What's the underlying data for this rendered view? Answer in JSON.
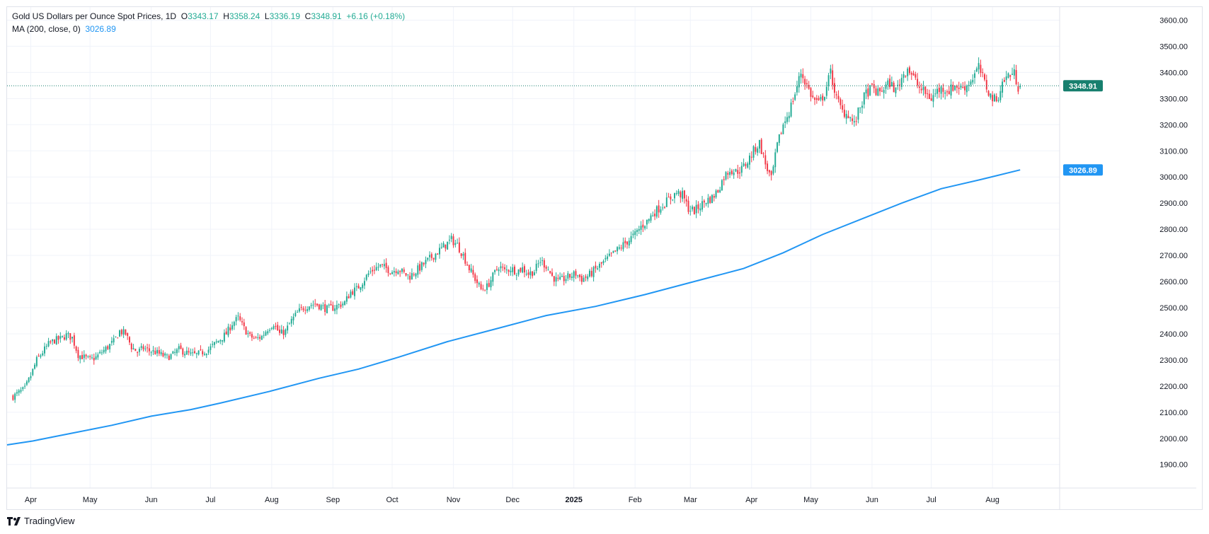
{
  "legend": {
    "title": "Gold US Dollars per Ounce Spot Prices, 1D",
    "open_label": "O",
    "open": "3343.17",
    "high_label": "H",
    "high": "3358.24",
    "low_label": "L",
    "low": "3336.19",
    "close_label": "C",
    "close": "3348.91",
    "change": "+6.16 (+0.18%)",
    "ma_label": "MA (200, close, 0)",
    "ma_value": "3026.89"
  },
  "branding": {
    "name": "TradingView"
  },
  "colors": {
    "up": "#22ab94",
    "down": "#f23645",
    "ma": "#2196f3",
    "last_price": "#177f6e",
    "grid": "#f0f3fa"
  },
  "chart_data": {
    "type": "candlestick",
    "title": "Gold US Dollars per Ounce Spot Prices, 1D",
    "ylim": [
      1810,
      3650
    ],
    "y_ticks": [
      1900,
      2000,
      2100,
      2200,
      2300,
      2400,
      2500,
      2600,
      2700,
      2800,
      2900,
      3000,
      3100,
      3200,
      3300,
      3400,
      3500,
      3600
    ],
    "y_tick_labels": [
      "1900.00",
      "2000.00",
      "2100.00",
      "2200.00",
      "2300.00",
      "2400.00",
      "2500.00",
      "2600.00",
      "2700.00",
      "2800.00",
      "2900.00",
      "3000.00",
      "3100.00",
      "3200.00",
      "3300.00",
      "3400.00",
      "3500.00",
      "3600.00"
    ],
    "x_labels": [
      {
        "label": "Apr",
        "day": 9
      },
      {
        "label": "May",
        "day": 39
      },
      {
        "label": "Jun",
        "day": 70
      },
      {
        "label": "Jul",
        "day": 100
      },
      {
        "label": "Aug",
        "day": 131
      },
      {
        "label": "Sep",
        "day": 162
      },
      {
        "label": "Oct",
        "day": 192
      },
      {
        "label": "Nov",
        "day": 223
      },
      {
        "label": "Dec",
        "day": 253
      },
      {
        "label": "2025",
        "day": 284,
        "bold": true
      },
      {
        "label": "Feb",
        "day": 315
      },
      {
        "label": "Mar",
        "day": 343
      },
      {
        "label": "Apr",
        "day": 374
      },
      {
        "label": "May",
        "day": 404
      },
      {
        "label": "Jun",
        "day": 435
      },
      {
        "label": "Jul",
        "day": 465
      },
      {
        "label": "Aug",
        "day": 496
      }
    ],
    "day_range": [
      -3,
      530
    ],
    "close_series": [
      [
        0,
        2160
      ],
      [
        3,
        2175
      ],
      [
        6,
        2190
      ],
      [
        9,
        2240
      ],
      [
        12,
        2300
      ],
      [
        15,
        2330
      ],
      [
        18,
        2360
      ],
      [
        21,
        2375
      ],
      [
        24,
        2380
      ],
      [
        27,
        2395
      ],
      [
        30,
        2385
      ],
      [
        33,
        2320
      ],
      [
        36,
        2310
      ],
      [
        39,
        2300
      ],
      [
        42,
        2310
      ],
      [
        45,
        2330
      ],
      [
        48,
        2350
      ],
      [
        51,
        2370
      ],
      [
        54,
        2410
      ],
      [
        57,
        2400
      ],
      [
        60,
        2350
      ],
      [
        63,
        2330
      ],
      [
        66,
        2345
      ],
      [
        69,
        2335
      ],
      [
        72,
        2330
      ],
      [
        75,
        2320
      ],
      [
        78,
        2310
      ],
      [
        81,
        2320
      ],
      [
        84,
        2340
      ],
      [
        87,
        2330
      ],
      [
        90,
        2320
      ],
      [
        93,
        2320
      ],
      [
        96,
        2330
      ],
      [
        99,
        2340
      ],
      [
        102,
        2360
      ],
      [
        105,
        2380
      ],
      [
        108,
        2400
      ],
      [
        111,
        2440
      ],
      [
        114,
        2460
      ],
      [
        117,
        2420
      ],
      [
        120,
        2390
      ],
      [
        123,
        2380
      ],
      [
        126,
        2390
      ],
      [
        129,
        2420
      ],
      [
        132,
        2440
      ],
      [
        135,
        2400
      ],
      [
        138,
        2410
      ],
      [
        141,
        2450
      ],
      [
        144,
        2480
      ],
      [
        147,
        2500
      ],
      [
        150,
        2510
      ],
      [
        153,
        2515
      ],
      [
        156,
        2505
      ],
      [
        159,
        2495
      ],
      [
        162,
        2500
      ],
      [
        165,
        2510
      ],
      [
        168,
        2520
      ],
      [
        171,
        2560
      ],
      [
        174,
        2570
      ],
      [
        177,
        2600
      ],
      [
        180,
        2630
      ],
      [
        183,
        2650
      ],
      [
        186,
        2660
      ],
      [
        189,
        2650
      ],
      [
        192,
        2640
      ],
      [
        195,
        2650
      ],
      [
        198,
        2630
      ],
      [
        201,
        2620
      ],
      [
        204,
        2640
      ],
      [
        207,
        2660
      ],
      [
        210,
        2680
      ],
      [
        213,
        2700
      ],
      [
        216,
        2720
      ],
      [
        219,
        2740
      ],
      [
        222,
        2760
      ],
      [
        225,
        2740
      ],
      [
        228,
        2700
      ],
      [
        231,
        2650
      ],
      [
        234,
        2610
      ],
      [
        237,
        2570
      ],
      [
        240,
        2580
      ],
      [
        243,
        2620
      ],
      [
        246,
        2660
      ],
      [
        249,
        2640
      ],
      [
        252,
        2650
      ],
      [
        255,
        2640
      ],
      [
        258,
        2650
      ],
      [
        261,
        2630
      ],
      [
        264,
        2640
      ],
      [
        267,
        2680
      ],
      [
        270,
        2660
      ],
      [
        273,
        2620
      ],
      [
        276,
        2600
      ],
      [
        279,
        2610
      ],
      [
        282,
        2620
      ],
      [
        285,
        2630
      ],
      [
        288,
        2610
      ],
      [
        291,
        2620
      ],
      [
        294,
        2640
      ],
      [
        297,
        2660
      ],
      [
        300,
        2680
      ],
      [
        303,
        2700
      ],
      [
        306,
        2720
      ],
      [
        309,
        2740
      ],
      [
        312,
        2760
      ],
      [
        315,
        2780
      ],
      [
        318,
        2810
      ],
      [
        321,
        2830
      ],
      [
        324,
        2860
      ],
      [
        327,
        2880
      ],
      [
        330,
        2900
      ],
      [
        333,
        2920
      ],
      [
        336,
        2940
      ],
      [
        339,
        2930
      ],
      [
        342,
        2880
      ],
      [
        345,
        2870
      ],
      [
        348,
        2890
      ],
      [
        351,
        2910
      ],
      [
        354,
        2920
      ],
      [
        357,
        2950
      ],
      [
        360,
        3000
      ],
      [
        363,
        3030
      ],
      [
        366,
        3020
      ],
      [
        369,
        3030
      ],
      [
        372,
        3060
      ],
      [
        375,
        3100
      ],
      [
        378,
        3130
      ],
      [
        381,
        3050
      ],
      [
        384,
        2990
      ],
      [
        387,
        3120
      ],
      [
        390,
        3200
      ],
      [
        393,
        3250
      ],
      [
        396,
        3320
      ],
      [
        399,
        3400
      ],
      [
        402,
        3350
      ],
      [
        405,
        3300
      ],
      [
        408,
        3280
      ],
      [
        411,
        3320
      ],
      [
        414,
        3400
      ],
      [
        417,
        3300
      ],
      [
        420,
        3250
      ],
      [
        423,
        3240
      ],
      [
        426,
        3200
      ],
      [
        429,
        3270
      ],
      [
        432,
        3320
      ],
      [
        435,
        3340
      ],
      [
        438,
        3320
      ],
      [
        441,
        3340
      ],
      [
        444,
        3360
      ],
      [
        447,
        3330
      ],
      [
        450,
        3380
      ],
      [
        453,
        3420
      ],
      [
        456,
        3380
      ],
      [
        459,
        3340
      ],
      [
        462,
        3320
      ],
      [
        465,
        3300
      ],
      [
        468,
        3330
      ],
      [
        471,
        3340
      ],
      [
        474,
        3330
      ],
      [
        477,
        3350
      ],
      [
        480,
        3340
      ],
      [
        483,
        3350
      ],
      [
        486,
        3380
      ],
      [
        489,
        3420
      ],
      [
        492,
        3360
      ],
      [
        495,
        3310
      ],
      [
        498,
        3290
      ],
      [
        501,
        3360
      ],
      [
        504,
        3390
      ],
      [
        507,
        3395
      ],
      [
        509,
        3345
      ],
      [
        510,
        3349
      ]
    ],
    "ma_series": [
      [
        -3,
        1975
      ],
      [
        10,
        1990
      ],
      [
        20,
        2005
      ],
      [
        30,
        2020
      ],
      [
        50,
        2050
      ],
      [
        70,
        2085
      ],
      [
        90,
        2110
      ],
      [
        105,
        2135
      ],
      [
        130,
        2180
      ],
      [
        155,
        2230
      ],
      [
        175,
        2265
      ],
      [
        195,
        2310
      ],
      [
        220,
        2370
      ],
      [
        245,
        2420
      ],
      [
        270,
        2470
      ],
      [
        295,
        2505
      ],
      [
        320,
        2550
      ],
      [
        345,
        2600
      ],
      [
        370,
        2650
      ],
      [
        390,
        2710
      ],
      [
        410,
        2780
      ],
      [
        430,
        2840
      ],
      [
        450,
        2900
      ],
      [
        470,
        2955
      ],
      [
        490,
        2990
      ],
      [
        510,
        3027
      ]
    ],
    "last_price": 3348.91,
    "last_price_label": "3348.91",
    "ma_last": 3026.89,
    "ma_last_label": "3026.89"
  }
}
